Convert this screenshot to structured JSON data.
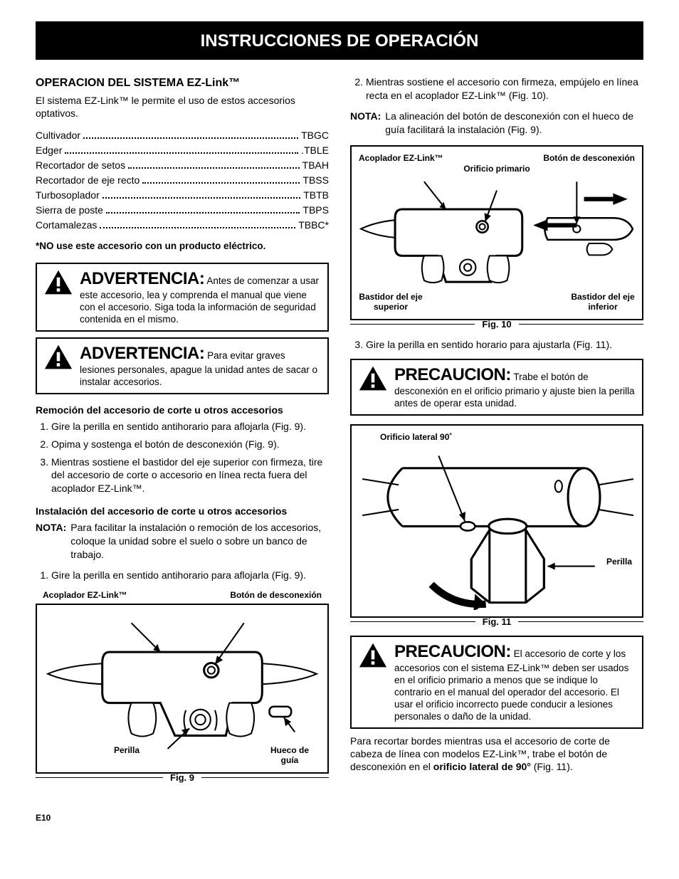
{
  "title": "INSTRUCCIONES DE OPERACIÓN",
  "left": {
    "heading": "OPERACION DEL SISTEMA EZ-Link™",
    "intro": "El sistema EZ-Link™ le permite el uso de estos accesorios optativos.",
    "accessories": [
      {
        "label": "Cultivador",
        "code": "TBGC"
      },
      {
        "label": "Edger",
        "code": ".TBLE"
      },
      {
        "label": "Recortador de setos",
        "code": "TBAH"
      },
      {
        "label": "Recortador de eje recto",
        "code": "TBSS"
      },
      {
        "label": "Turbosoplador",
        "code": "TBTB"
      },
      {
        "label": "Sierra de poste",
        "code": "TBPS"
      },
      {
        "label": "Cortamalezas",
        "code": "TBBC*"
      }
    ],
    "star_note": "*NO use este accesorio con un producto eléctrico.",
    "warn1": {
      "word": "ADVERTENCIA:",
      "text": "Antes de comenzar a usar este accesorio, lea y comprenda el manual que viene con el accesorio. Siga toda la información de seguridad contenida en el mismo."
    },
    "warn2": {
      "word": "ADVERTENCIA:",
      "text": "Para evitar graves lesiones personales, apague la unidad antes de sacar o instalar accesorios."
    },
    "remocion_heading": "Remoción del accesorio de corte u otros accesorios",
    "remocion_steps": [
      "Gire la perilla en sentido antihorario para aflojarla (Fig. 9).",
      "Opima y sostenga el botón de desconexión (Fig. 9).",
      "Mientras sostiene el bastidor del eje superior con firmeza, tire del accesorio de corte o accesorio en línea recta fuera del acoplador EZ-Link™."
    ],
    "instal_heading": "Instalación del accesorio de corte u otros accesorios",
    "instal_nota": "Para facilitar la instalación o remoción de los accesorios, coloque la unidad sobre el suelo o sobre un banco de trabajo.",
    "instal_nota_label": "NOTA:",
    "instal_steps": [
      "Gire la perilla en sentido antihorario para aflojarla (Fig. 9)."
    ],
    "fig9": {
      "caption": "Fig. 9",
      "lbl_acoplador": "Acoplador EZ-Link™",
      "lbl_boton": "Botón de desconexión",
      "lbl_perilla": "Perilla",
      "lbl_hueco": "Hueco de guía"
    }
  },
  "right": {
    "step2": "Mientras sostiene el accesorio con firmeza, empújelo en línea recta en el acoplador EZ-Link™ (Fig. 10).",
    "nota_label": "NOTA:",
    "nota": "La alineación del botón de desconexión con el hueco de guía facilitará la instalación (Fig. 9).",
    "fig10": {
      "caption": "Fig. 10",
      "lbl_acoplador": "Acoplador EZ-Link™",
      "lbl_boton": "Botón de desconexión",
      "lbl_orificio": "Orificio primario",
      "lbl_bast_sup": "Bastidor del eje superior",
      "lbl_bast_inf": "Bastidor del eje inferior"
    },
    "step3": "Gire la perilla en sentido horario para ajustarla (Fig. 11).",
    "caution1": {
      "word": "PRECAUCION:",
      "text": "Trabe el botón de desconexión en el orificio primario y ajuste bien la perilla antes de operar esta unidad."
    },
    "fig11": {
      "caption": "Fig. 11",
      "lbl_orificio": "Orificio lateral 90˚",
      "lbl_perilla": "Perilla"
    },
    "caution2": {
      "word": "PRECAUCION:",
      "text": "El accesorio de corte y los accesorios con el sistema EZ-Link™ deben ser usados en el orificio primario a menos que se indique lo contrario en el manual del operador del accesorio. El usar el orificio incorrecto puede conducir a lesiones personales o daño de la unidad."
    },
    "closing_pre": "Para recortar bordes mientras usa el accesorio de corte de cabeza de línea con modelos EZ-Link™, trabe el botón de desconexión en el ",
    "closing_bold": "orificio lateral de 90°",
    "closing_post": " (Fig. 11)."
  },
  "pagenum": "E10"
}
